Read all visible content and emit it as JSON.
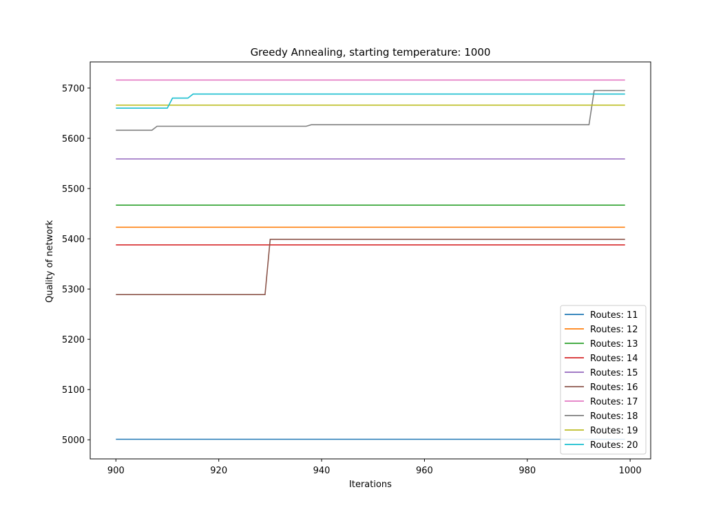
{
  "chart_data": {
    "type": "line",
    "title": "Greedy Annealing, starting temperature: 1000",
    "xlabel": "Iterations",
    "ylabel": "Quality of network",
    "xlim": [
      895,
      1004
    ],
    "ylim": [
      4962,
      5752
    ],
    "x_ticks": [
      900,
      920,
      940,
      960,
      980,
      1000
    ],
    "y_ticks": [
      5000,
      5100,
      5200,
      5300,
      5400,
      5500,
      5600,
      5700
    ],
    "grid": false,
    "legend_position": "lower right",
    "series": [
      {
        "name": "Routes: 11",
        "color": "#1f77b4",
        "points": [
          [
            900,
            5001
          ],
          [
            999,
            5001
          ]
        ]
      },
      {
        "name": "Routes: 12",
        "color": "#ff7f0e",
        "points": [
          [
            900,
            5423
          ],
          [
            999,
            5423
          ]
        ]
      },
      {
        "name": "Routes: 13",
        "color": "#2ca02c",
        "points": [
          [
            900,
            5467
          ],
          [
            999,
            5467
          ]
        ]
      },
      {
        "name": "Routes: 14",
        "color": "#d62728",
        "points": [
          [
            900,
            5388
          ],
          [
            999,
            5388
          ]
        ]
      },
      {
        "name": "Routes: 15",
        "color": "#9467bd",
        "points": [
          [
            900,
            5559
          ],
          [
            999,
            5559
          ]
        ]
      },
      {
        "name": "Routes: 16",
        "color": "#8c564b",
        "points": [
          [
            900,
            5289
          ],
          [
            929,
            5289
          ],
          [
            930,
            5399
          ],
          [
            999,
            5399
          ]
        ]
      },
      {
        "name": "Routes: 17",
        "color": "#e377c2",
        "points": [
          [
            900,
            5716
          ],
          [
            999,
            5716
          ]
        ]
      },
      {
        "name": "Routes: 18",
        "color": "#7f7f7f",
        "points": [
          [
            900,
            5616
          ],
          [
            907,
            5616
          ],
          [
            908,
            5624
          ],
          [
            937,
            5624
          ],
          [
            938,
            5627
          ],
          [
            992,
            5627
          ],
          [
            993,
            5695
          ],
          [
            999,
            5695
          ]
        ]
      },
      {
        "name": "Routes: 19",
        "color": "#bcbd22",
        "points": [
          [
            900,
            5666
          ],
          [
            999,
            5666
          ]
        ]
      },
      {
        "name": "Routes: 20",
        "color": "#17becf",
        "points": [
          [
            900,
            5660
          ],
          [
            910,
            5660
          ],
          [
            911,
            5680
          ],
          [
            914,
            5680
          ],
          [
            915,
            5688
          ],
          [
            999,
            5688
          ]
        ]
      }
    ]
  }
}
